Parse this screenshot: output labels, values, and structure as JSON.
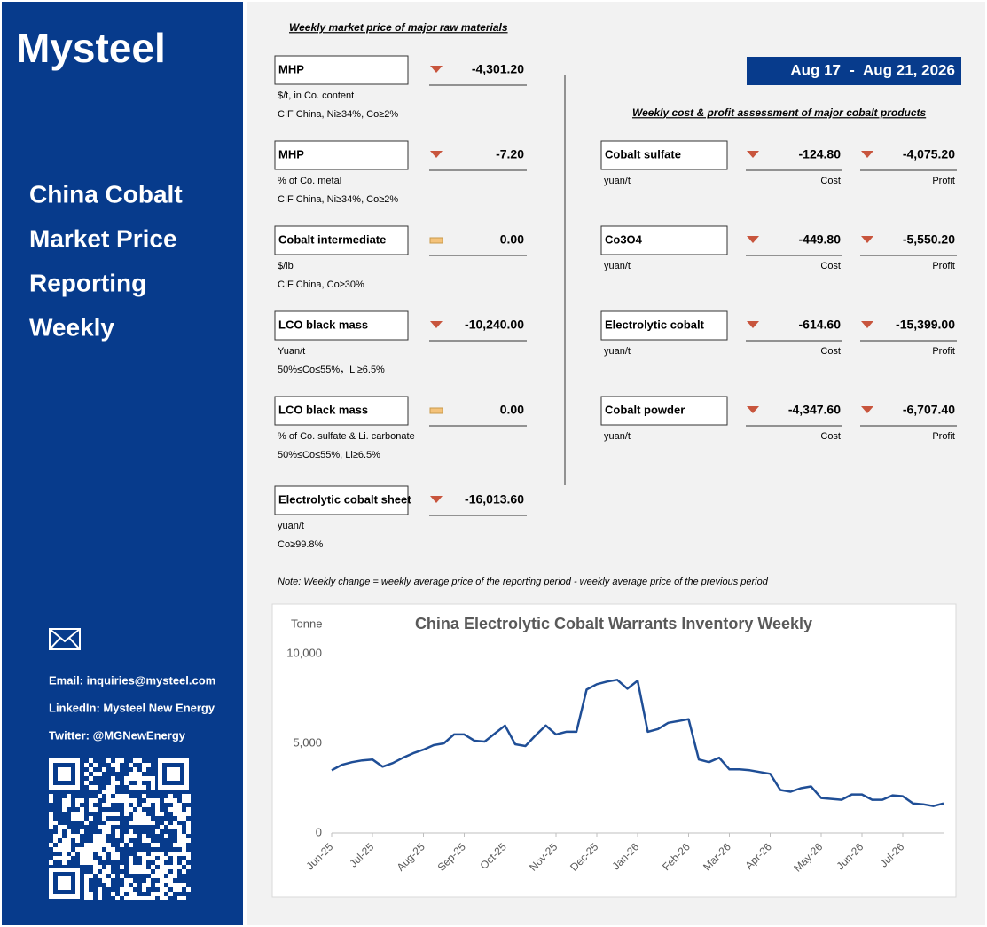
{
  "sidebar": {
    "logo": "Mysteel",
    "title_lines": [
      "China Cobalt",
      "Market Price",
      "Reporting",
      "Weekly"
    ],
    "contacts": [
      "Email: inquiries@mysteel.com",
      "LinkedIn: Mysteel New Energy",
      "Twitter: @MGNewEnergy"
    ]
  },
  "raw_materials": {
    "heading": "Weekly market price of major raw materials",
    "items": [
      {
        "name": "MHP",
        "trend": "down",
        "change": "-4,301.20",
        "unit": "$/t, in Co. content",
        "spec": "CIF China, Ni≥34%, Co≥2%"
      },
      {
        "name": "MHP",
        "trend": "down",
        "change": "-7.20",
        "unit": "% of Co. metal",
        "spec": "CIF China, Ni≥34%, Co≥2%"
      },
      {
        "name": "Cobalt intermediate",
        "trend": "flat",
        "change": "0.00",
        "unit": "$/lb",
        "spec": "CIF China, Co≥30%"
      },
      {
        "name": "LCO black mass",
        "trend": "down",
        "change": "-10,240.00",
        "unit": "Yuan/t",
        "spec": "50%≤Co≤55%，Li≥6.5%"
      },
      {
        "name": "LCO black mass",
        "trend": "flat",
        "change": "0.00",
        "unit": "% of Co. sulfate & Li. carbonate",
        "spec": "50%≤Co≤55%, Li≥6.5%"
      },
      {
        "name": "Electrolytic cobalt sheet",
        "trend": "down",
        "change": "-16,013.60",
        "unit": "yuan/t",
        "spec": "Co≥99.8%"
      }
    ]
  },
  "date_range": {
    "start": "Aug 17",
    "separator": "-",
    "end": "Aug 21, 2026"
  },
  "cost_profit": {
    "heading": "Weekly cost & profit assessment of major cobalt products",
    "cost_label": "Cost",
    "profit_label": "Profit",
    "items": [
      {
        "name": "Cobalt sulfate",
        "unit": "yuan/t",
        "cost_trend": "down",
        "cost": "-124.80",
        "profit_trend": "down",
        "profit": "-4,075.20"
      },
      {
        "name": "Co3O4",
        "unit": "yuan/t",
        "cost_trend": "down",
        "cost": "-449.80",
        "profit_trend": "down",
        "profit": "-5,550.20"
      },
      {
        "name": "Electrolytic cobalt",
        "unit": "yuan/t",
        "cost_trend": "down",
        "cost": "-614.60",
        "profit_trend": "down",
        "profit": "-15,399.00"
      },
      {
        "name": "Cobalt powder",
        "unit": "yuan/t",
        "cost_trend": "down",
        "cost": "-4,347.60",
        "profit_trend": "down",
        "profit": "-6,707.40"
      }
    ]
  },
  "note": "Note: Weekly change = weekly average price of the reporting period - weekly average price of the previous period",
  "chart_data": {
    "type": "line",
    "title": "China Electrolytic Cobalt Warrants Inventory Weekly",
    "y_label": "Tonne",
    "color": "#1f4e96",
    "categories": [
      "Jun-25",
      null,
      null,
      null,
      "Jul-25",
      null,
      null,
      null,
      null,
      "Aug-25",
      null,
      null,
      null,
      "Sep-25",
      null,
      null,
      null,
      "Oct-25",
      null,
      null,
      null,
      null,
      "Nov-25",
      null,
      null,
      null,
      "Dec-25",
      null,
      null,
      null,
      "Jan-26",
      null,
      null,
      null,
      null,
      "Feb-26",
      null,
      null,
      null,
      "Mar-26",
      null,
      null,
      null,
      "Apr-26",
      null,
      null,
      null,
      null,
      "May-26",
      null,
      null,
      null,
      "Jun-26",
      null,
      null,
      null,
      "Jul-26",
      null,
      null,
      null,
      null
    ],
    "values": [
      3500,
      3800,
      3950,
      4050,
      4100,
      3700,
      3900,
      4200,
      4450,
      4650,
      4900,
      5000,
      5500,
      5500,
      5150,
      5100,
      5550,
      6000,
      4950,
      4850,
      5450,
      6000,
      5500,
      5650,
      5650,
      8000,
      8300,
      8450,
      8550,
      8050,
      8500,
      5650,
      5800,
      6150,
      6250,
      6350,
      4100,
      3950,
      4200,
      3550,
      3550,
      3500,
      3400,
      3300,
      2400,
      2300,
      2500,
      2600,
      1950,
      1900,
      1850,
      2150,
      2150,
      1850,
      1850,
      2100,
      2050,
      1650,
      1600,
      1500,
      1650
    ],
    "ylim": [
      0,
      10000
    ],
    "yticks": [
      0,
      {
        "value": 5000,
        "label": "5,000"
      },
      {
        "value": 10000,
        "label": "10,000"
      }
    ]
  }
}
